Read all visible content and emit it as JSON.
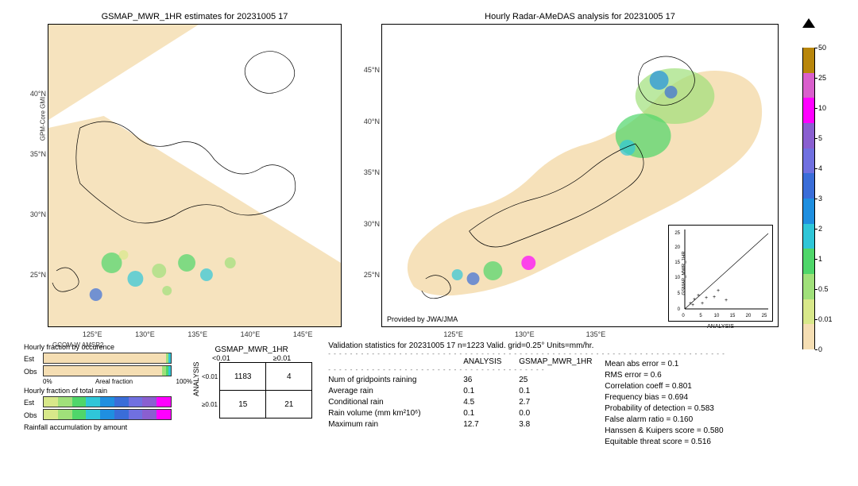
{
  "left_map": {
    "title": "GSMAP_MWR_1HR estimates for 20231005 17",
    "yticks": [
      "25°N",
      "30°N",
      "35°N",
      "40°N"
    ],
    "xticks": [
      "125°E",
      "130°E",
      "135°E",
      "140°E",
      "145°E"
    ],
    "sat_labels": {
      "top": "GPM-Core\nGMI",
      "bottom": "GCOM-W\nAMSR2"
    }
  },
  "right_map": {
    "title": "Hourly Radar-AMeDAS analysis for 20231005 17",
    "yticks": [
      "25°N",
      "30°N",
      "35°N",
      "40°N",
      "45°N"
    ],
    "xticks": [
      "125°E",
      "130°E",
      "135°E"
    ],
    "provided": "Provided by JWA/JMA",
    "scatter": {
      "xlabel": "ANALYSIS",
      "ylabel": "GSMAP_MWR_1HR",
      "ticks": [
        "0",
        "5",
        "10",
        "15",
        "20",
        "25"
      ]
    }
  },
  "colorbar": {
    "colors": [
      "#b8860b",
      "#d95fcc",
      "#ff00ff",
      "#8a5fd0",
      "#7070e0",
      "#3a6dd8",
      "#1f8fe0",
      "#2fc6d8",
      "#4fd66a",
      "#a0e07a",
      "#d8e88a",
      "#f5deb3"
    ],
    "ticks": [
      "50",
      "25",
      "10",
      "5",
      "4",
      "3",
      "2",
      "1",
      "0.5",
      "0.01",
      "0"
    ]
  },
  "fraction": {
    "occ_title": "Hourly fraction by occurence",
    "occ_labels": [
      "Est",
      "Obs"
    ],
    "occ_xlabels": [
      "0%",
      "Areal fraction",
      "100%"
    ],
    "tot_title": "Hourly fraction of total rain",
    "tot_labels": [
      "Est",
      "Obs"
    ],
    "acc_title": "Rainfall accumulation by amount",
    "occ_colors": {
      "bg": "#f5deb3",
      "est_end": [
        "#a0e07a",
        "#2fc6d8"
      ],
      "obs_end": [
        "#a0e07a",
        "#4fd66a",
        "#2fc6d8"
      ]
    },
    "tot_colors": [
      "#d8e88a",
      "#a0e07a",
      "#4fd66a",
      "#2fc6d8",
      "#1f8fe0",
      "#3a6dd8",
      "#7070e0",
      "#8a5fd0",
      "#ff00ff"
    ]
  },
  "contingency": {
    "col_title": "GSMAP_MWR_1HR",
    "col_headers": [
      "<0.01",
      "≥0.01"
    ],
    "row_title": "ANALYSIS",
    "row_headers": [
      "<0.01",
      "≥0.01"
    ],
    "cells": [
      [
        "1183",
        "4"
      ],
      [
        "15",
        "21"
      ]
    ]
  },
  "validation": {
    "title": "Validation statistics for 20231005 17  n=1223 Valid. grid=0.25° Units=mm/hr.",
    "cols": [
      "ANALYSIS",
      "GSMAP_MWR_1HR"
    ],
    "rows": [
      {
        "label": "Num of gridpoints raining",
        "a": "36",
        "b": "25"
      },
      {
        "label": "Average rain",
        "a": "0.1",
        "b": "0.1"
      },
      {
        "label": "Conditional rain",
        "a": "4.5",
        "b": "2.7"
      },
      {
        "label": "Rain volume (mm km²10⁶)",
        "a": "0.1",
        "b": "0.0"
      },
      {
        "label": "Maximum rain",
        "a": "12.7",
        "b": "3.8"
      }
    ],
    "stats": [
      {
        "label": "Mean abs error =",
        "v": "0.1"
      },
      {
        "label": "RMS error =",
        "v": "0.6"
      },
      {
        "label": "Correlation coeff =",
        "v": "0.801"
      },
      {
        "label": "Frequency bias =",
        "v": "0.694"
      },
      {
        "label": "Probability of detection =",
        "v": "0.583"
      },
      {
        "label": "False alarm ratio =",
        "v": "0.160"
      },
      {
        "label": "Hanssen & Kuipers score =",
        "v": "0.580"
      },
      {
        "label": "Equitable threat score =",
        "v": "0.516"
      }
    ]
  }
}
